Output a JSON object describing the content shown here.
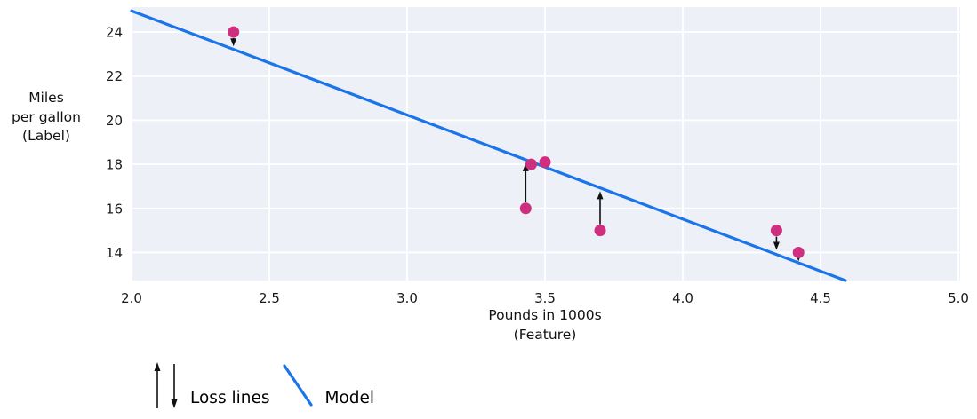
{
  "chart_data": {
    "type": "scatter",
    "title": "",
    "xlabel_lines": [
      "Pounds in 1000s",
      "(Feature)"
    ],
    "ylabel_lines": [
      "Miles",
      "per gallon",
      "(Label)"
    ],
    "x_ticks": [
      "2.0",
      "2.5",
      "3.0",
      "3.5",
      "4.0",
      "4.5",
      "5.0"
    ],
    "x_tick_values": [
      2.0,
      2.5,
      3.0,
      3.5,
      4.0,
      4.5,
      5.0
    ],
    "y_ticks": [
      "14",
      "16",
      "18",
      "20",
      "22",
      "24"
    ],
    "y_tick_values": [
      14,
      16,
      18,
      20,
      22,
      24
    ],
    "xlim": [
      2.0,
      5.0
    ],
    "ylim": [
      12.73,
      25.13
    ],
    "grid": true,
    "points": [
      {
        "x": 2.37,
        "y": 24
      },
      {
        "x": 3.45,
        "y": 18
      },
      {
        "x": 3.5,
        "y": 18.1
      },
      {
        "x": 3.43,
        "y": 16
      },
      {
        "x": 3.7,
        "y": 15
      },
      {
        "x": 4.34,
        "y": 15
      },
      {
        "x": 4.42,
        "y": 14
      }
    ],
    "model_line": {
      "x1": 2.0,
      "y1": 24.96,
      "x2": 4.59,
      "y2": 12.73
    },
    "loss_lines": [
      {
        "x": 2.37,
        "from": 24,
        "to": 23.35,
        "direction": "down"
      },
      {
        "x": 3.43,
        "from": 16,
        "to": 18.05,
        "direction": "up"
      },
      {
        "x": 3.7,
        "from": 15,
        "to": 16.78,
        "direction": "up"
      },
      {
        "x": 4.34,
        "from": 15,
        "to": 14.12,
        "direction": "down"
      },
      {
        "x": 4.42,
        "from": 14,
        "to": 13.6,
        "direction": "down"
      }
    ],
    "legend": {
      "position": "bottom-left",
      "items": [
        {
          "label": "Loss lines",
          "symbol": "arrows"
        },
        {
          "label": "Model",
          "symbol": "line"
        }
      ]
    },
    "colors": {
      "point": "#cf2f7e",
      "model": "#1a74ea",
      "loss_line": "#111111",
      "plot_background": "#eef0f7",
      "grid": "#ffffff",
      "text": "#1a1a1a"
    }
  }
}
